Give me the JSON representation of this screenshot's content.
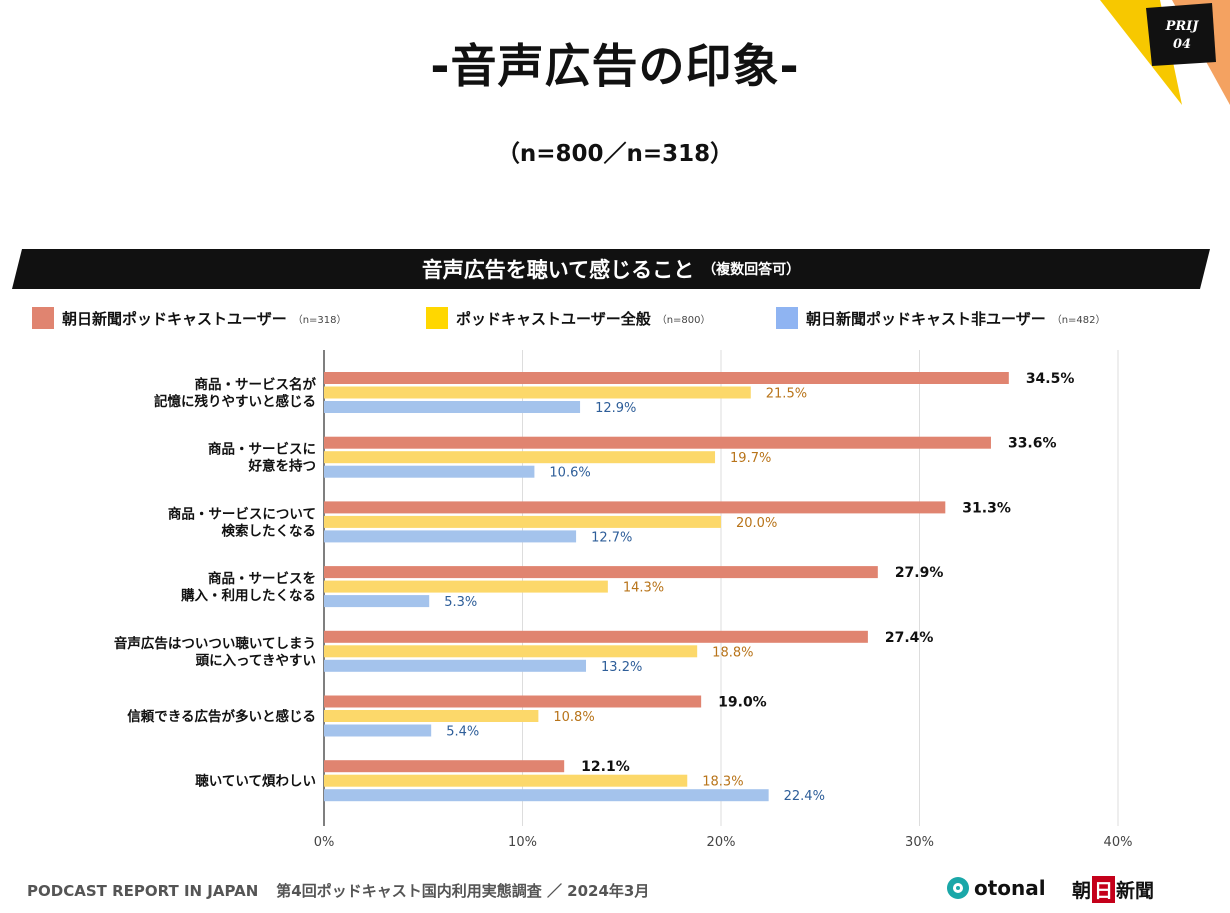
{
  "header": {
    "title": "-音声広告の印象-",
    "subtitle": "（n=800／n=318）",
    "badge_line1": "PRIJ",
    "badge_line2": "04"
  },
  "banner": {
    "title": "音声広告を聴いて感じること",
    "note": "（複数回答可）"
  },
  "legend": [
    {
      "label": "朝日新聞ポッドキャストユーザー",
      "n": "（n=318）",
      "color": "#e08470"
    },
    {
      "label": "ポッドキャストユーザー全般",
      "n": "（n=800）",
      "color": "#ffd700"
    },
    {
      "label": "朝日新聞ポッドキャスト非ユーザー",
      "n": "（n=482）",
      "color": "#8fb4f2"
    }
  ],
  "chart_data": {
    "type": "bar",
    "orientation": "horizontal",
    "title": "音声広告を聴いて感じること（複数回答可）",
    "categories": [
      [
        "商品・サービス名が",
        "記憶に残りやすいと感じる"
      ],
      [
        "商品・サービスに",
        "好意を持つ"
      ],
      [
        "商品・サービスについて",
        "検索したくなる"
      ],
      [
        "商品・サービスを",
        "購入・利用したくなる"
      ],
      [
        "音声広告はついつい聴いてしまう",
        "頭に入ってきやすい"
      ],
      [
        "信頼できる広告が多いと感じる"
      ],
      [
        "聴いていて煩わしい"
      ]
    ],
    "series": [
      {
        "name": "朝日新聞ポッドキャストユーザー",
        "color": "#e08470",
        "label_color": "#111111",
        "values": [
          34.5,
          33.6,
          31.3,
          27.9,
          27.4,
          19.0,
          12.1
        ],
        "labels": [
          "34.5%",
          "33.6%",
          "31.3%",
          "27.9%",
          "27.4%",
          "19.0%",
          "12.1%"
        ]
      },
      {
        "name": "ポッドキャストユーザー全般",
        "color": "#fcd86a",
        "label_color": "#b8741a",
        "values": [
          21.5,
          19.7,
          20.0,
          14.3,
          18.8,
          10.8,
          18.3
        ],
        "labels": [
          "21.5%",
          "19.7%",
          "20.0%",
          "14.3%",
          "18.8%",
          "10.8%",
          "18.3%"
        ]
      },
      {
        "name": "朝日新聞ポッドキャスト非ユーザー",
        "color": "#a4c3ec",
        "label_color": "#2e5e99",
        "values": [
          12.9,
          10.6,
          12.7,
          5.3,
          13.2,
          5.4,
          22.4
        ],
        "labels": [
          "12.9%",
          "10.6%",
          "12.7%",
          "5.3%",
          "13.2%",
          "5.4%",
          "22.4%"
        ]
      }
    ],
    "xlim": [
      0,
      40
    ],
    "xticks": [
      0,
      10,
      20,
      30,
      40
    ],
    "xtick_labels": [
      "0%",
      "10%",
      "20%",
      "30%",
      "40%"
    ],
    "grid": true
  },
  "footer": {
    "report": "PODCAST REPORT IN JAPAN",
    "survey": "第4回ポッドキャスト国内利用実態調査 ／ 2024年3月",
    "logo_otonal": "otonal",
    "logo_asahi_1": "朝",
    "logo_asahi_2": "日",
    "logo_asahi_3": "新聞"
  }
}
